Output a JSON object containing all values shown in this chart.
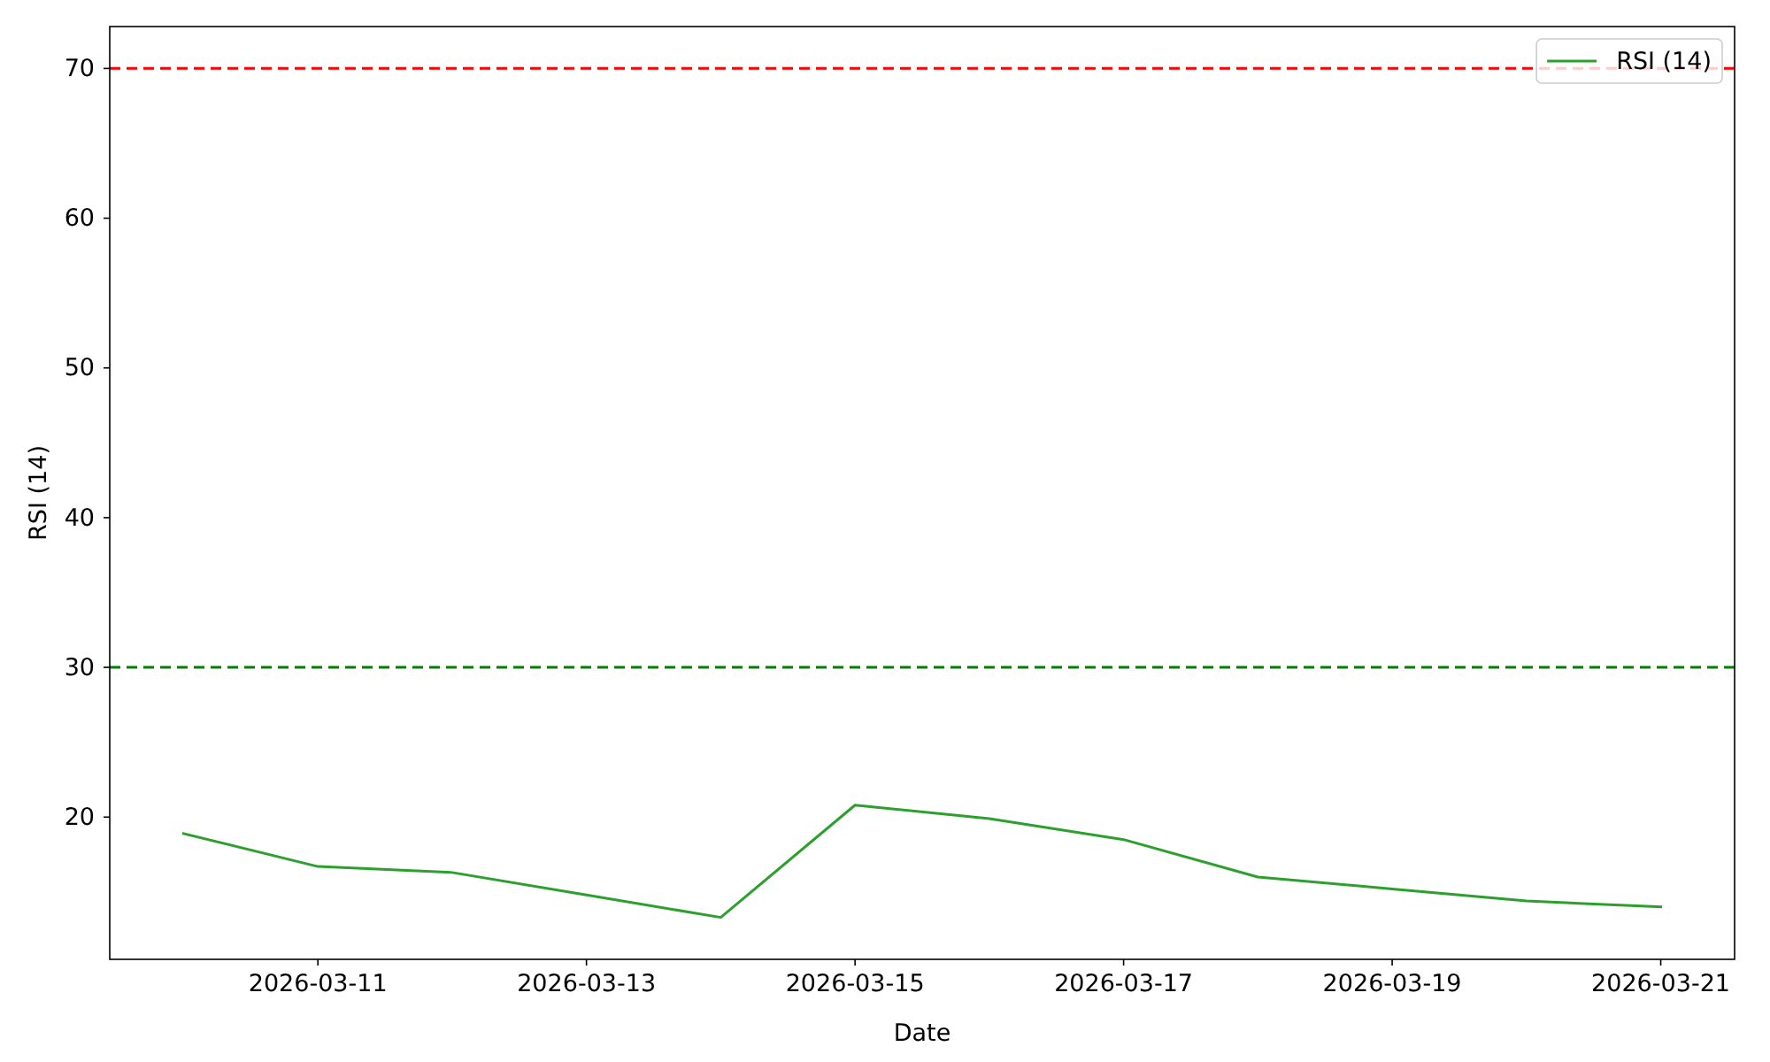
{
  "chart_data": {
    "type": "line",
    "xlabel": "Date",
    "ylabel": "RSI (14)",
    "x": [
      "2026-03-10",
      "2026-03-11",
      "2026-03-12",
      "2026-03-13",
      "2026-03-14",
      "2026-03-15",
      "2026-03-16",
      "2026-03-17",
      "2026-03-18",
      "2026-03-19",
      "2026-03-20",
      "2026-03-21"
    ],
    "series": [
      {
        "name": "RSI (14)",
        "color": "#2ca02c",
        "values": [
          18.9,
          16.7,
          16.3,
          14.8,
          13.3,
          20.8,
          19.9,
          18.5,
          16.0,
          15.2,
          14.4,
          14.0
        ]
      }
    ],
    "xlim": [
      "2026-03-09T10:48",
      "2026-03-21T13:12"
    ],
    "xticks": [
      "2026-03-11",
      "2026-03-13",
      "2026-03-15",
      "2026-03-17",
      "2026-03-19",
      "2026-03-21"
    ],
    "ylim": [
      10.5,
      72.8
    ],
    "yticks": [
      20,
      30,
      40,
      50,
      60,
      70
    ],
    "ref_lines": [
      {
        "axis": "y",
        "value": 70,
        "color": "#ff0000",
        "line_style": "dashed"
      },
      {
        "axis": "y",
        "value": 30,
        "color": "#008000",
        "line_style": "dashed"
      }
    ],
    "legend": "top right"
  }
}
